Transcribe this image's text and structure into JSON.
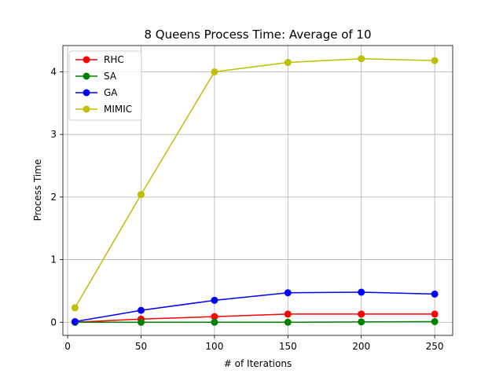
{
  "chart_data": {
    "type": "line",
    "title": "8 Queens Process Time: Average of 10",
    "xlabel": "# of Iterations",
    "ylabel": "Process Time",
    "x": [
      5,
      50,
      100,
      150,
      200,
      250
    ],
    "xlim": [
      -3.25,
      262.25
    ],
    "ylim": [
      -0.21,
      4.42
    ],
    "xticks": [
      0,
      50,
      100,
      150,
      200,
      250
    ],
    "yticks": [
      0,
      1,
      2,
      3,
      4
    ],
    "grid": true,
    "legend_position": "upper-left",
    "series": [
      {
        "name": "RHC",
        "color": "#ff0000",
        "values": [
          0.0,
          0.05,
          0.09,
          0.13,
          0.13,
          0.13
        ]
      },
      {
        "name": "SA",
        "color": "#008000",
        "values": [
          0.0,
          0.0,
          0.0,
          0.0,
          0.005,
          0.01
        ]
      },
      {
        "name": "GA",
        "color": "#0000ff",
        "values": [
          0.01,
          0.19,
          0.35,
          0.47,
          0.48,
          0.45
        ]
      },
      {
        "name": "MIMIC",
        "color": "#bfbf00",
        "values": [
          0.23,
          2.04,
          4.0,
          4.15,
          4.21,
          4.18
        ]
      }
    ]
  }
}
